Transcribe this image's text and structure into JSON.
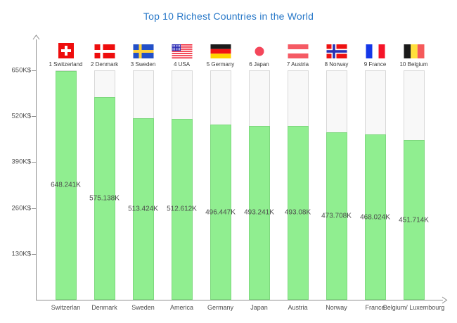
{
  "colors": {
    "title": "#2878C8",
    "bar_fill": "#90EE90",
    "bar_border": "#7DD87D",
    "track_fill": "#F8F8F8",
    "track_border": "#D8D8D8",
    "axis": "#8F8F8F",
    "tick_text": "#4D4D4D",
    "value_text": "#4D4D4D",
    "flag_label_text": "#383838"
  },
  "chart_data": {
    "type": "bar",
    "title": "Top 10 Richest Countries in the World",
    "xlabel": "",
    "ylabel": "",
    "y_unit": "K$",
    "ylim": [
      0,
      650
    ],
    "grid": false,
    "legend_position": "top-flags",
    "y_ticks": {
      "values": [
        650,
        520,
        390,
        260,
        130
      ],
      "labels": [
        "650K$",
        "520K$",
        "390K$",
        "260K$",
        "130K$"
      ]
    },
    "categories": [
      "Switzerlan",
      "Denmark",
      "Sweden",
      "America",
      "Germany",
      "Japan",
      "Austria",
      "Norway",
      "France",
      "Belgium/ Luxembourg"
    ],
    "values": [
      648.241,
      575.138,
      513.424,
      512.612,
      496.447,
      493.241,
      493.08,
      473.708,
      468.024,
      451.714
    ],
    "value_labels": [
      "648.241K",
      "575.138K",
      "513.424K",
      "512.612K",
      "496.447K",
      "493.241K",
      "493.08K",
      "473.708K",
      "468.024K",
      "451.714K"
    ],
    "flags": [
      {
        "rank_label": "1 Switzerland",
        "icon": "switzerland"
      },
      {
        "rank_label": "2 Denmark",
        "icon": "denmark"
      },
      {
        "rank_label": "3 Sweden",
        "icon": "sweden"
      },
      {
        "rank_label": "4 USA",
        "icon": "usa"
      },
      {
        "rank_label": "5 Germany",
        "icon": "germany"
      },
      {
        "rank_label": "6 Japan",
        "icon": "japan"
      },
      {
        "rank_label": "7 Austria",
        "icon": "austria"
      },
      {
        "rank_label": "8 Norway",
        "icon": "norway"
      },
      {
        "rank_label": "9 France",
        "icon": "france"
      },
      {
        "rank_label": "10 Belgium",
        "icon": "belgium"
      }
    ]
  }
}
